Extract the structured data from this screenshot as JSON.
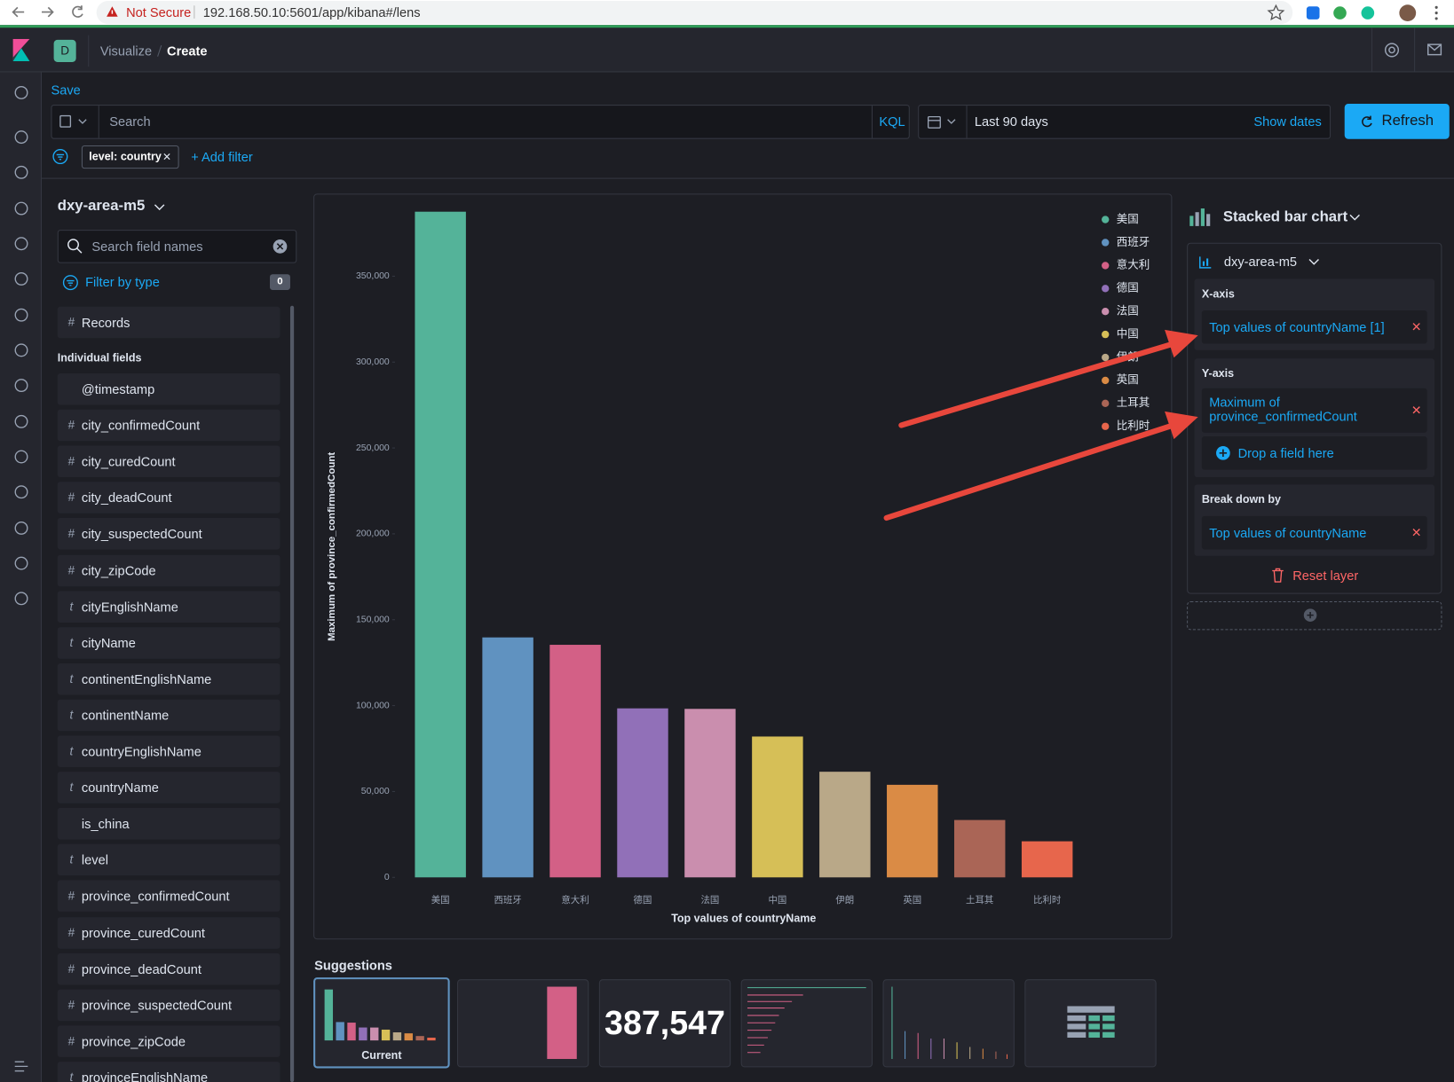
{
  "browser": {
    "security": "Not Secure",
    "url": "192.168.50.10:5601/app/kibana#/lens"
  },
  "header": {
    "space": "D",
    "breadcrumbs": [
      "Visualize",
      "Create"
    ]
  },
  "query_bar": {
    "save": "Save",
    "search_placeholder": "Search",
    "language": "KQL",
    "time_range": "Last 90 days",
    "show_dates": "Show dates",
    "refresh": "Refresh",
    "filter": "level: country",
    "add_filter": "+ Add filter"
  },
  "field_list": {
    "index": "dxy-area-m5",
    "search_placeholder": "Search field names",
    "filter_by_type": "Filter by type",
    "filter_count": "0",
    "records": {
      "icon": "#",
      "name": "Records"
    },
    "section": "Individual fields",
    "fields": [
      {
        "type": "date",
        "name": "@timestamp"
      },
      {
        "icon": "#",
        "name": "city_confirmedCount"
      },
      {
        "icon": "#",
        "name": "city_curedCount"
      },
      {
        "icon": "#",
        "name": "city_deadCount"
      },
      {
        "icon": "#",
        "name": "city_suspectedCount"
      },
      {
        "icon": "#",
        "name": "city_zipCode"
      },
      {
        "icon": "t",
        "name": "cityEnglishName"
      },
      {
        "icon": "t",
        "name": "cityName"
      },
      {
        "icon": "t",
        "name": "continentEnglishName"
      },
      {
        "icon": "t",
        "name": "continentName"
      },
      {
        "icon": "t",
        "name": "countryEnglishName"
      },
      {
        "icon": "t",
        "name": "countryName"
      },
      {
        "type": "boolean",
        "name": "is_china"
      },
      {
        "icon": "t",
        "name": "level"
      },
      {
        "icon": "#",
        "name": "province_confirmedCount"
      },
      {
        "icon": "#",
        "name": "province_curedCount"
      },
      {
        "icon": "#",
        "name": "province_deadCount"
      },
      {
        "icon": "#",
        "name": "province_suspectedCount"
      },
      {
        "icon": "#",
        "name": "province_zipCode"
      },
      {
        "icon": "t",
        "name": "provinceEnglishName"
      }
    ]
  },
  "chart_data": {
    "type": "bar",
    "x_label": "Top values of countryName",
    "y_label": "Maximum of province_confirmedCount",
    "categories": [
      "美国",
      "西班牙",
      "意大利",
      "德国",
      "法国",
      "中国",
      "伊朗",
      "英国",
      "土耳其",
      "比利时"
    ],
    "values": [
      387547,
      139700,
      135400,
      98400,
      98100,
      82000,
      61500,
      53900,
      33400,
      21000
    ],
    "colors": [
      "#54b399",
      "#6092c0",
      "#d36086",
      "#9170b8",
      "#ca8eae",
      "#d6bf57",
      "#b9a888",
      "#da8b45",
      "#aa6556",
      "#e7664c"
    ],
    "ylim": [
      0,
      387547
    ],
    "yticks": [
      0,
      {
        "value": 50000,
        "label": "50,000"
      },
      {
        "value": 100000,
        "label": "100,000"
      },
      {
        "value": 150000,
        "label": "150,000"
      },
      {
        "value": 200000,
        "label": "200,000"
      },
      {
        "value": 250000,
        "label": "250,000"
      },
      {
        "value": 300000,
        "label": "300,000"
      },
      {
        "value": 350000,
        "label": "350,000"
      }
    ],
    "grid": false,
    "legend": "top-right"
  },
  "suggestions": {
    "title": "Suggestions",
    "current": "Current",
    "metric": "387,547"
  },
  "config": {
    "chart_type": "Stacked bar chart",
    "layer_index": "dxy-area-m5",
    "x_axis": {
      "title": "X-axis",
      "value": "Top values of countryName [1]"
    },
    "y_axis": {
      "title": "Y-axis",
      "value": "Maximum of province_confirmedCount",
      "drop": "Drop a field here"
    },
    "break_down": {
      "title": "Break down by",
      "value": "Top values of countryName"
    },
    "reset": "Reset layer"
  }
}
